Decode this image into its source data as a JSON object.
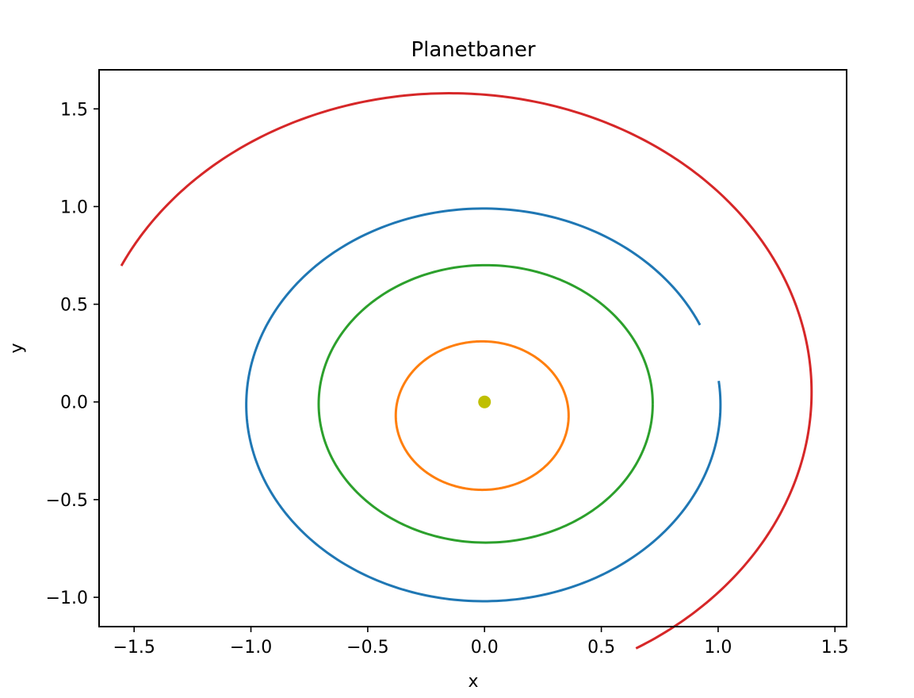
{
  "chart_data": {
    "type": "line",
    "title": "Planetbaner",
    "xlabel": "x",
    "ylabel": "y",
    "xlim": [
      -1.65,
      1.55
    ],
    "ylim": [
      -1.15,
      1.7
    ],
    "xticks": [
      -1.5,
      -1.0,
      -0.5,
      0.0,
      0.5,
      1.0,
      1.5
    ],
    "xtick_labels": [
      "−1.5",
      "−1.0",
      "−0.5",
      "0.0",
      "0.5",
      "1.0",
      "1.5"
    ],
    "yticks": [
      -1.0,
      -0.5,
      0.0,
      0.5,
      1.0,
      1.5
    ],
    "ytick_labels": [
      "−1.0",
      "−0.5",
      "0.0",
      "0.5",
      "1.0",
      "1.5"
    ],
    "grid": false,
    "legend": "none",
    "series": [
      {
        "color": "#1f77b4",
        "orbit": {
          "cx": -0.005,
          "cy": -0.015,
          "rx": 1.015,
          "ry": 1.005,
          "start_deg": 24,
          "end_deg": 367
        }
      },
      {
        "color": "#ff7f0e",
        "orbit": {
          "cx": -0.01,
          "cy": -0.07,
          "rx": 0.37,
          "ry": 0.38,
          "start_deg": 0,
          "end_deg": 360
        }
      },
      {
        "color": "#2ca02c",
        "orbit": {
          "cx": 0.005,
          "cy": -0.01,
          "rx": 0.715,
          "ry": 0.71,
          "start_deg": 0,
          "end_deg": 360
        }
      },
      {
        "color": "#d62728",
        "orbit": {
          "cx": -0.15,
          "cy": 0.05,
          "rx": 1.55,
          "ry": 1.53,
          "start_deg": -59,
          "end_deg": 155
        }
      }
    ],
    "points": [
      {
        "x": 0.0,
        "y": 0.0,
        "color": "#bfbf00"
      }
    ]
  }
}
